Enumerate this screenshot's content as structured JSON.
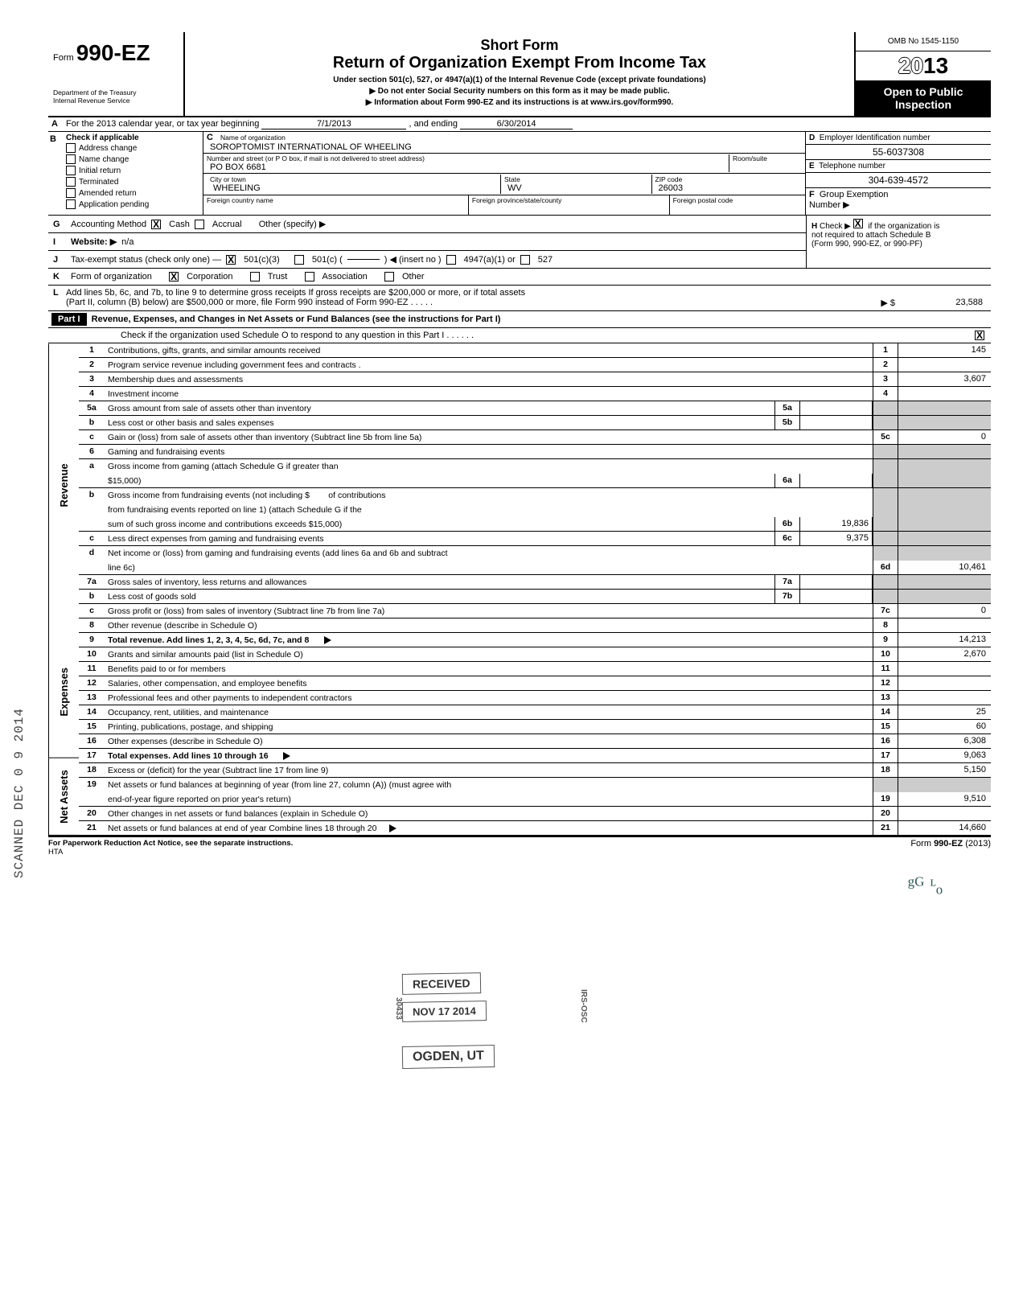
{
  "header": {
    "form_prefix": "Form",
    "form_number": "990-EZ",
    "title1": "Short Form",
    "title2": "Return of Organization Exempt From Income Tax",
    "subtitle": "Under section 501(c), 527, or 4947(a)(1) of the Internal Revenue Code (except private foundations)",
    "line2": "Do not enter Social Security numbers on this form as it may be made public.",
    "line3": "Information about Form 990-EZ and its instructions is at www.irs.gov/form990.",
    "dept1": "Department of the Treasury",
    "dept2": "Internal Revenue Service",
    "omb": "OMB No 1545-1150",
    "year_prefix": "20",
    "year_suffix": "13",
    "open1": "Open to Public",
    "open2": "Inspection"
  },
  "line_a": {
    "label": "For the 2013 calendar year, or tax year beginning",
    "begin": "7/1/2013",
    "mid": ", and ending",
    "end": "6/30/2014"
  },
  "section_b": {
    "header": "Check if applicable",
    "items": [
      "Address change",
      "Name change",
      "Initial return",
      "Terminated",
      "Amended return",
      "Application pending"
    ]
  },
  "section_c": {
    "name_label": "Name of organization",
    "name": "SOROPTOMIST INTERNATIONAL OF WHEELING",
    "addr_label": "Number and street (or P O  box, if mail is not delivered to street address)",
    "room_label": "Room/suite",
    "addr": "PO BOX 6681",
    "city_label": "City or town",
    "state_label": "State",
    "zip_label": "ZIP code",
    "city": "WHEELING",
    "state": "WV",
    "zip": "26003",
    "foreign_country_label": "Foreign country name",
    "foreign_prov_label": "Foreign province/state/county",
    "foreign_postal_label": "Foreign postal code"
  },
  "section_d": {
    "ein_label": "Employer Identification number",
    "ein": "55-6037308",
    "tel_label": "Telephone number",
    "tel": "304-639-4572",
    "group_label": "Group Exemption",
    "number_label": "Number ▶"
  },
  "line_g": {
    "label": "Accounting Method",
    "cash": "Cash",
    "accrual": "Accrual",
    "other": "Other (specify) ▶"
  },
  "line_h": {
    "text1": "Check ▶",
    "text2": "if the organization is",
    "text3": "not required to attach Schedule B",
    "text4": "(Form 990, 990-EZ, or 990-PF)"
  },
  "line_i": {
    "label": "Website: ▶",
    "value": "n/a"
  },
  "line_j": {
    "label": "Tax-exempt status (check only one) —",
    "opt1": "501(c)(3)",
    "opt2": "501(c) (",
    "insert": ") ◀ (insert no )",
    "opt3": "4947(a)(1) or",
    "opt4": "527"
  },
  "line_k": {
    "label": "Form of organization",
    "corp": "Corporation",
    "trust": "Trust",
    "assoc": "Association",
    "other": "Other"
  },
  "line_l": {
    "text1": "Add lines 5b, 6c, and 7b, to line 9 to determine gross receipts  If gross receipts are $200,000 or more, or if total assets",
    "text2": "(Part II, column (B) below) are $500,000 or more, file Form 990 instead of Form 990-EZ    .    .    .    .    .",
    "arrow": "▶ $",
    "value": "23,588"
  },
  "part1": {
    "label": "Part I",
    "title": "Revenue, Expenses, and Changes in Net Assets or Fund Balances (see the instructions for Part I)",
    "check_text": "Check if the organization used Schedule O to respond to any question in this Part I    .    .    .    .    .    ."
  },
  "revenue_label": "Revenue",
  "expenses_label": "Expenses",
  "netassets_label": "Net Assets",
  "rows": {
    "r1": {
      "num": "1",
      "desc": "Contributions, gifts, grants, and similar amounts received",
      "tn": "1",
      "tv": "145"
    },
    "r2": {
      "num": "2",
      "desc": "Program service revenue including government fees and contracts .",
      "tn": "2",
      "tv": ""
    },
    "r3": {
      "num": "3",
      "desc": "Membership dues and assessments",
      "tn": "3",
      "tv": "3,607"
    },
    "r4": {
      "num": "4",
      "desc": "Investment income",
      "tn": "4",
      "tv": ""
    },
    "r5a": {
      "num": "5a",
      "desc": "Gross amount from sale of assets other than inventory",
      "sn": "5a",
      "sv": ""
    },
    "r5b": {
      "num": "b",
      "desc": "Less  cost or other basis and sales expenses",
      "sn": "5b",
      "sv": ""
    },
    "r5c": {
      "num": "c",
      "desc": "Gain or (loss) from sale of assets other than inventory (Subtract line 5b from line 5a)",
      "tn": "5c",
      "tv": "0"
    },
    "r6": {
      "num": "6",
      "desc": "Gaming and fundraising events"
    },
    "r6a1": {
      "num": "a",
      "desc": "Gross income from gaming (attach Schedule G if greater than"
    },
    "r6a2": {
      "desc": "$15,000)",
      "sn": "6a",
      "sv": ""
    },
    "r6b1": {
      "num": "b",
      "desc": "Gross income from fundraising events (not including       $",
      "after": "of contributions"
    },
    "r6b2": {
      "desc": "from fundraising events reported on line 1) (attach Schedule G if the"
    },
    "r6b3": {
      "desc": "sum of such gross income and contributions exceeds $15,000)",
      "sn": "6b",
      "sv": "19,836"
    },
    "r6c": {
      "num": "c",
      "desc": "Less  direct expenses from gaming and fundraising events",
      "sn": "6c",
      "sv": "9,375"
    },
    "r6d1": {
      "num": "d",
      "desc": "Net income or (loss) from gaming and fundraising events (add lines 6a and 6b and subtract"
    },
    "r6d2": {
      "desc": "line 6c)",
      "tn": "6d",
      "tv": "10,461"
    },
    "r7a": {
      "num": "7a",
      "desc": "Gross sales of inventory, less returns and allowances",
      "sn": "7a",
      "sv": ""
    },
    "r7b": {
      "num": "b",
      "desc": "Less  cost of goods sold",
      "sn": "7b",
      "sv": ""
    },
    "r7c": {
      "num": "c",
      "desc": "Gross profit or (loss) from sales of inventory (Subtract line 7b from line 7a)",
      "tn": "7c",
      "tv": "0"
    },
    "r8": {
      "num": "8",
      "desc": "Other revenue (describe in Schedule O)",
      "tn": "8",
      "tv": ""
    },
    "r9": {
      "num": "9",
      "desc": "Total revenue. Add lines 1, 2, 3, 4, 5c, 6d, 7c, and 8",
      "tn": "9",
      "tv": "14,213",
      "arrow": true,
      "bold": true
    },
    "r10": {
      "num": "10",
      "desc": "Grants and similar amounts paid (list in Schedule O)",
      "tn": "10",
      "tv": "2,670"
    },
    "r11": {
      "num": "11",
      "desc": "Benefits paid to or for members",
      "tn": "11",
      "tv": ""
    },
    "r12": {
      "num": "12",
      "desc": "Salaries, other compensation, and employee benefits",
      "tn": "12",
      "tv": ""
    },
    "r13": {
      "num": "13",
      "desc": "Professional fees and other payments to independent contractors",
      "tn": "13",
      "tv": ""
    },
    "r14": {
      "num": "14",
      "desc": "Occupancy, rent, utilities, and maintenance",
      "tn": "14",
      "tv": "25"
    },
    "r15": {
      "num": "15",
      "desc": "Printing, publications, postage, and shipping",
      "tn": "15",
      "tv": "60"
    },
    "r16": {
      "num": "16",
      "desc": "Other expenses (describe in Schedule O)",
      "tn": "16",
      "tv": "6,308"
    },
    "r17": {
      "num": "17",
      "desc": "Total expenses. Add lines 10 through 16",
      "tn": "17",
      "tv": "9,063",
      "arrow": true,
      "bold": true
    },
    "r18": {
      "num": "18",
      "desc": "Excess or (deficit) for the year (Subtract line 17 from line 9)",
      "tn": "18",
      "tv": "5,150"
    },
    "r19a": {
      "num": "19",
      "desc": "Net assets or fund balances at beginning of year (from line 27, column (A)) (must agree with"
    },
    "r19b": {
      "desc": "end-of-year figure reported on prior year's return)",
      "tn": "19",
      "tv": "9,510"
    },
    "r20": {
      "num": "20",
      "desc": "Other changes in net assets or fund balances (explain in Schedule O)",
      "tn": "20",
      "tv": ""
    },
    "r21": {
      "num": "21",
      "desc": "Net assets or fund balances at end of year  Combine lines 18 through 20",
      "tn": "21",
      "tv": "14,660",
      "arrow": true
    }
  },
  "stamps": {
    "received": "RECEIVED",
    "date": "NOV 17 2014",
    "ogden": "OGDEN, UT",
    "irs": "IRS-OSC",
    "code": "30433"
  },
  "footer": {
    "left": "For Paperwork Reduction Act Notice, see the separate instructions.",
    "hta": "HTA",
    "right": "Form 990-EZ (2013)"
  },
  "scanned": "SCANNED DEC 0 9 2014",
  "initials": "ᵍᴳ   ᶫₒ"
}
